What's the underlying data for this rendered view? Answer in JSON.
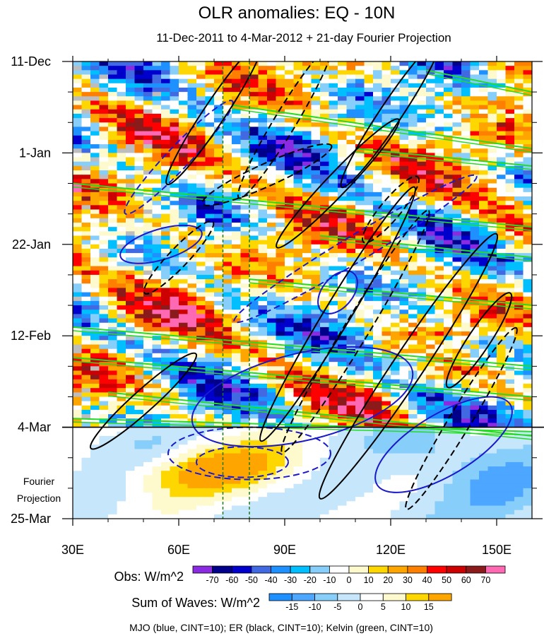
{
  "chart_data": {
    "type": "heatmap",
    "title": "OLR anomalies: EQ - 10N",
    "subtitle": "11-Dec-2011 to 4-Mar-2012 + 21-day Fourier Projection",
    "x_axis": {
      "range": [
        30,
        160
      ],
      "ticks": [
        30,
        60,
        90,
        120,
        150
      ],
      "tick_labels": [
        "30E",
        "60E",
        "90E",
        "120E",
        "150E"
      ]
    },
    "y_axis": {
      "range_days": [
        0,
        105
      ],
      "ticks_days": [
        0,
        21,
        42,
        63,
        84,
        105
      ],
      "tick_labels": [
        "11-Dec",
        "1-Jan",
        "22-Jan",
        "12-Feb",
        "4-Mar",
        "25-Mar"
      ],
      "projection_label": [
        "Fourier",
        "Projection"
      ]
    },
    "observation_end_day": 84,
    "reference_lines_lon": [
      72.5,
      80
    ],
    "legend_obs": {
      "label": "Obs: W/m^2",
      "levels": [
        -70,
        -60,
        -50,
        -40,
        -30,
        -20,
        -10,
        0,
        10,
        20,
        30,
        40,
        50,
        60,
        70
      ],
      "colors": [
        "#8a2be2",
        "#00008b",
        "#0000cd",
        "#4169e1",
        "#1e90ff",
        "#00bfff",
        "#87cefa",
        "#ffffff",
        "#fffacd",
        "#ffd700",
        "#ffa500",
        "#ff7f00",
        "#ff0000",
        "#cc0000",
        "#8b1a1a",
        "#ff69b4"
      ]
    },
    "legend_waves": {
      "label": "Sum of Waves: W/m^2",
      "levels": [
        -15,
        -10,
        -5,
        0,
        5,
        10,
        15
      ],
      "colors": [
        "#1e90ff",
        "#4da6ff",
        "#87cefa",
        "#c6e6fb",
        "#ffffff",
        "#fffacd",
        "#ffd700",
        "#ffa500"
      ]
    },
    "footer": "MJO (blue, CINT=10); ER (black, CINT=10); Kelvin (green, CINT=10)",
    "wave_contours": {
      "MJO": [
        {
          "lon": 60,
          "day": 22,
          "rx": 22,
          "ry": 2.6,
          "angle": 0.35,
          "sign": "negative"
        },
        {
          "lon": 55,
          "day": 42,
          "rx": 12,
          "ry": 3.5,
          "angle": 0.1,
          "sign": "positive"
        },
        {
          "lon": 110,
          "day": 43,
          "rx": 40,
          "ry": 3,
          "angle": 0.2,
          "sign": "negative"
        },
        {
          "lon": 105,
          "day": 53,
          "rx": 7,
          "ry": 3.5,
          "angle": 0.4,
          "sign": "positive"
        },
        {
          "lon": 95,
          "day": 77,
          "rx": 32,
          "ry": 10,
          "angle": 0.08,
          "sign": "positive"
        },
        {
          "lon": 80,
          "day": 90,
          "rx": 23,
          "ry": 6,
          "angle": 0.0,
          "sign": "negative"
        },
        {
          "lon": 78,
          "day": 92,
          "rx": 13,
          "ry": 3.5,
          "angle": 0.0,
          "sign": "negative"
        },
        {
          "lon": 135,
          "day": 88,
          "rx": 22,
          "ry": 7,
          "angle": 0.2,
          "sign": "positive"
        }
      ],
      "ER": [
        {
          "lon": 70,
          "day": 12,
          "rx": 24,
          "ry": 2.5,
          "angle": 0.5,
          "sign": "positive"
        },
        {
          "lon": 90,
          "day": 14,
          "rx": 25,
          "ry": 2.5,
          "angle": 0.55,
          "sign": "negative"
        },
        {
          "lon": 120,
          "day": 12,
          "rx": 25,
          "ry": 2.5,
          "angle": 0.5,
          "sign": "positive"
        },
        {
          "lon": 85,
          "day": 26,
          "rx": 20,
          "ry": 2.6,
          "angle": 0.15,
          "sign": "negative"
        },
        {
          "lon": 105,
          "day": 28,
          "rx": 25,
          "ry": 2.5,
          "angle": 0.35,
          "sign": "positive"
        },
        {
          "lon": 120,
          "day": 34,
          "rx": 12,
          "ry": 2.3,
          "angle": 0.4,
          "sign": "negative"
        },
        {
          "lon": 60,
          "day": 45,
          "rx": 14,
          "ry": 2.2,
          "angle": 0.35,
          "sign": "negative"
        },
        {
          "lon": 105,
          "day": 58,
          "rx": 42,
          "ry": 3,
          "angle": 0.55,
          "sign": "positive"
        },
        {
          "lon": 110,
          "day": 62,
          "rx": 40,
          "ry": 2.8,
          "angle": 0.55,
          "sign": "negative"
        },
        {
          "lon": 125,
          "day": 70,
          "rx": 45,
          "ry": 3.5,
          "angle": 0.5,
          "sign": "positive"
        },
        {
          "lon": 145,
          "day": 64,
          "rx": 16,
          "ry": 2.5,
          "angle": 0.5,
          "sign": "positive"
        },
        {
          "lon": 50,
          "day": 78,
          "rx": 20,
          "ry": 2.5,
          "angle": 0.3,
          "sign": "positive"
        },
        {
          "lon": 140,
          "day": 82,
          "rx": 30,
          "ry": 2.5,
          "angle": 0.55,
          "sign": "negative"
        }
      ],
      "Kelvin_lines": [
        {
          "lon1": 30,
          "day1": 28,
          "lon2": 160,
          "day2": 38
        },
        {
          "lon1": 30,
          "day1": 61,
          "lon2": 160,
          "day2": 70
        },
        {
          "lon1": 30,
          "day1": 68,
          "lon2": 160,
          "day2": 77
        },
        {
          "lon1": 30,
          "day1": 82,
          "lon2": 160,
          "day2": 85
        },
        {
          "lon1": 75,
          "day1": 10,
          "lon2": 160,
          "day2": 20
        },
        {
          "lon1": 110,
          "day1": 20,
          "lon2": 160,
          "day2": 24
        },
        {
          "lon1": 80,
          "day1": 50,
          "lon2": 160,
          "day2": 56
        },
        {
          "lon1": 130,
          "day1": 2,
          "lon2": 160,
          "day2": 7
        },
        {
          "lon1": 40,
          "day1": 76,
          "lon2": 160,
          "day2": 86
        },
        {
          "lon1": 100,
          "day1": 40,
          "lon2": 160,
          "day2": 45
        }
      ]
    }
  }
}
